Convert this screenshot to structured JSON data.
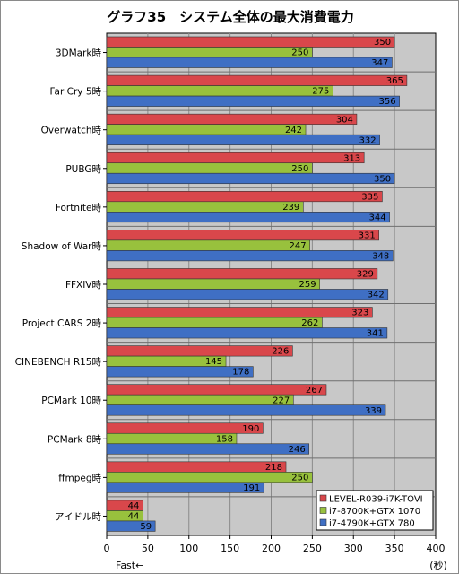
{
  "chart_data": {
    "type": "bar",
    "orientation": "horizontal",
    "title": "グラフ35　システム全体の最大消費電力",
    "categories": [
      "3DMark時",
      "Far Cry 5時",
      "Overwatch時",
      "PUBG時",
      "Fortnite時",
      "Shadow of War時",
      "FFXIV時",
      "Project CARS 2時",
      "CINEBENCH R15時",
      "PCMark 10時",
      "PCMark 8時",
      "ffmpeg時",
      "アイドル時"
    ],
    "series": [
      {
        "name": "LEVEL-R039-i7K-TOVI",
        "color": "#d9474b",
        "values": [
          350,
          365,
          304,
          313,
          335,
          331,
          329,
          323,
          226,
          267,
          190,
          218,
          44
        ]
      },
      {
        "name": "i7-8700K+GTX 1070",
        "color": "#98c13d",
        "values": [
          250,
          275,
          242,
          250,
          239,
          247,
          259,
          262,
          145,
          227,
          158,
          250,
          44
        ]
      },
      {
        "name": "i7-4790K+GTX 780",
        "color": "#3f6fc4",
        "values": [
          347,
          356,
          332,
          350,
          344,
          348,
          342,
          341,
          178,
          339,
          246,
          191,
          59
        ]
      }
    ],
    "xlim": [
      0,
      400
    ],
    "xticks": [
      0,
      50,
      100,
      150,
      200,
      250,
      300,
      350,
      400
    ],
    "xunit": "(秒)",
    "xnote": "Fast←",
    "grid": true,
    "legend": "bottom-right"
  }
}
